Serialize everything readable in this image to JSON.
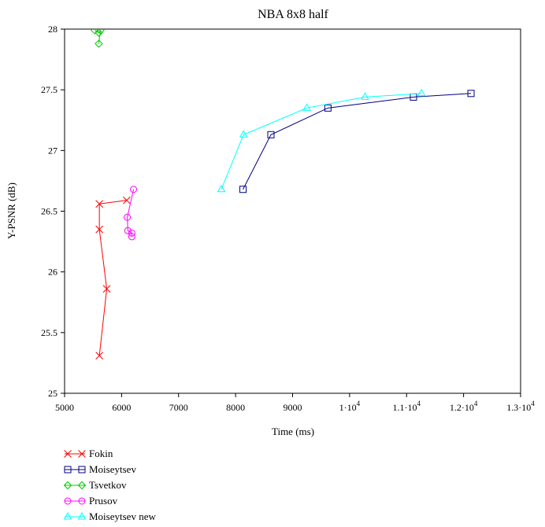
{
  "chart_data": {
    "type": "line",
    "title": "NBA 8x8 half",
    "xlabel": "Time (ms)",
    "ylabel": "Y-PSNR (dB)",
    "xlim": [
      5000,
      13000
    ],
    "ylim": [
      25,
      28
    ],
    "grid": false,
    "legend_position": "bottom-left",
    "x_ticks": [
      {
        "value": 5000,
        "label": "5000"
      },
      {
        "value": 6000,
        "label": "6000"
      },
      {
        "value": 7000,
        "label": "7000"
      },
      {
        "value": 8000,
        "label": "8000"
      },
      {
        "value": 9000,
        "label": "9000"
      },
      {
        "value": 10000,
        "label": "1·10",
        "exp": "4"
      },
      {
        "value": 11000,
        "label": "1.1·10",
        "exp": "4"
      },
      {
        "value": 12000,
        "label": "1.2·10",
        "exp": "4"
      },
      {
        "value": 13000,
        "label": "1.3·10",
        "exp": "4"
      }
    ],
    "y_ticks": [
      {
        "value": 25,
        "label": "25"
      },
      {
        "value": 25.5,
        "label": "25.5"
      },
      {
        "value": 26,
        "label": "26"
      },
      {
        "value": 26.5,
        "label": "26.5"
      },
      {
        "value": 27,
        "label": "27"
      },
      {
        "value": 27.5,
        "label": "27.5"
      },
      {
        "value": 28,
        "label": "28"
      }
    ],
    "series": [
      {
        "name": "Fokin",
        "color": "#ff0000",
        "marker": "x",
        "points": [
          [
            6090,
            26.59
          ],
          [
            5610,
            26.56
          ],
          [
            5610,
            26.35
          ],
          [
            5740,
            25.86
          ],
          [
            5610,
            25.31
          ]
        ]
      },
      {
        "name": "Moiseytsev",
        "color": "#000080",
        "marker": "square",
        "points": [
          [
            8130,
            26.68
          ],
          [
            8620,
            27.13
          ],
          [
            9620,
            27.35
          ],
          [
            11120,
            27.44
          ],
          [
            12130,
            27.47
          ]
        ]
      },
      {
        "name": "Tsvetkov",
        "color": "#00cc00",
        "marker": "diamond",
        "points": [
          [
            5530,
            27.99
          ],
          [
            5600,
            27.97
          ],
          [
            5630,
            27.99
          ],
          [
            5600,
            27.88
          ]
        ]
      },
      {
        "name": "Prusov",
        "color": "#ff00ff",
        "marker": "circle",
        "points": [
          [
            6210,
            26.68
          ],
          [
            6100,
            26.45
          ],
          [
            6110,
            26.34
          ],
          [
            6180,
            26.32
          ],
          [
            6180,
            26.29
          ]
        ]
      },
      {
        "name": "Moiseytsev new",
        "color": "#00ffff",
        "marker": "triangle",
        "points": [
          [
            7750,
            26.68
          ],
          [
            8140,
            27.13
          ],
          [
            9250,
            27.35
          ],
          [
            10270,
            27.44
          ],
          [
            11260,
            27.47
          ]
        ]
      }
    ]
  }
}
